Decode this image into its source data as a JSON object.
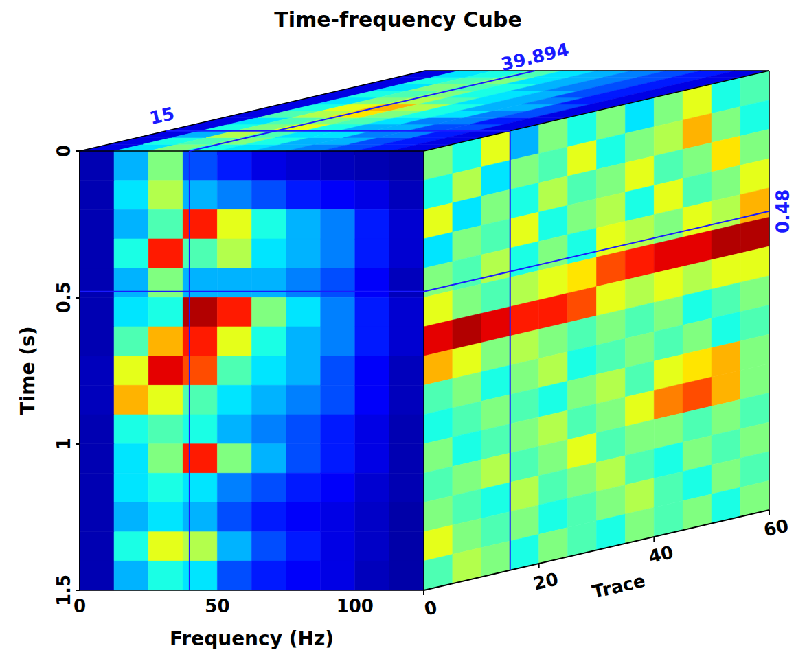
{
  "chart_data": {
    "type": "heatmap_cube",
    "title": "Time-frequency Cube",
    "x_label": "Frequency (Hz)",
    "y_label": "Time (s)",
    "z_label": "Trace",
    "xlim": [
      0,
      125
    ],
    "xticks": [
      0,
      50,
      100
    ],
    "ylim": [
      0,
      1.5
    ],
    "yticks": [
      0,
      0.5,
      1,
      1.5
    ],
    "zlim": [
      0,
      60
    ],
    "zticks": [
      0,
      20,
      40,
      60
    ],
    "grid": false,
    "color_range": [
      0,
      1
    ],
    "slices": {
      "frequency": 39.894,
      "time": 0.48,
      "trace": 15
    },
    "frequency_edges": [
      0,
      12.5,
      25,
      37.5,
      50,
      62.5,
      75,
      87.5,
      100,
      112.5,
      125
    ],
    "time_edges": [
      0,
      0.1,
      0.2,
      0.3,
      0.4,
      0.5,
      0.6,
      0.7,
      0.8,
      0.9,
      1.0,
      1.1,
      1.2,
      1.3,
      1.4,
      1.5
    ],
    "trace_edges": [
      0,
      5,
      10,
      15,
      20,
      25,
      30,
      35,
      40,
      45,
      50,
      55,
      60
    ],
    "front_cells": [
      [
        0.05,
        0.3,
        0.5,
        0.2,
        0.15,
        0.1,
        0.08,
        0.06,
        0.05,
        0.04
      ],
      [
        0.05,
        0.35,
        0.55,
        0.3,
        0.25,
        0.2,
        0.15,
        0.12,
        0.1,
        0.06
      ],
      [
        0.05,
        0.3,
        0.45,
        0.85,
        0.6,
        0.4,
        0.3,
        0.25,
        0.15,
        0.08
      ],
      [
        0.05,
        0.4,
        0.85,
        0.45,
        0.55,
        0.35,
        0.3,
        0.25,
        0.15,
        0.08
      ],
      [
        0.05,
        0.3,
        0.5,
        0.3,
        0.3,
        0.3,
        0.25,
        0.2,
        0.12,
        0.06
      ],
      [
        0.05,
        0.35,
        0.4,
        0.95,
        0.85,
        0.5,
        0.35,
        0.25,
        0.15,
        0.08
      ],
      [
        0.05,
        0.45,
        0.7,
        0.85,
        0.6,
        0.4,
        0.3,
        0.25,
        0.15,
        0.08
      ],
      [
        0.06,
        0.6,
        0.9,
        0.8,
        0.45,
        0.35,
        0.3,
        0.2,
        0.12,
        0.06
      ],
      [
        0.06,
        0.7,
        0.6,
        0.45,
        0.35,
        0.3,
        0.25,
        0.2,
        0.12,
        0.06
      ],
      [
        0.05,
        0.4,
        0.45,
        0.4,
        0.3,
        0.25,
        0.2,
        0.15,
        0.1,
        0.05
      ],
      [
        0.05,
        0.35,
        0.5,
        0.85,
        0.5,
        0.3,
        0.2,
        0.15,
        0.1,
        0.05
      ],
      [
        0.05,
        0.35,
        0.4,
        0.35,
        0.25,
        0.2,
        0.15,
        0.12,
        0.08,
        0.05
      ],
      [
        0.05,
        0.3,
        0.35,
        0.3,
        0.2,
        0.15,
        0.12,
        0.1,
        0.07,
        0.04
      ],
      [
        0.05,
        0.4,
        0.6,
        0.55,
        0.3,
        0.2,
        0.15,
        0.1,
        0.07,
        0.04
      ],
      [
        0.05,
        0.3,
        0.4,
        0.35,
        0.2,
        0.15,
        0.12,
        0.1,
        0.06,
        0.04
      ]
    ],
    "side_cells": [
      [
        0.5,
        0.4,
        0.6,
        0.3,
        0.5,
        0.4,
        0.5,
        0.35,
        0.5,
        0.6,
        0.4,
        0.45
      ],
      [
        0.4,
        0.55,
        0.35,
        0.5,
        0.45,
        0.6,
        0.4,
        0.5,
        0.55,
        0.7,
        0.5,
        0.4
      ],
      [
        0.6,
        0.35,
        0.5,
        0.4,
        0.55,
        0.45,
        0.5,
        0.6,
        0.45,
        0.5,
        0.65,
        0.5
      ],
      [
        0.35,
        0.5,
        0.45,
        0.6,
        0.4,
        0.5,
        0.55,
        0.4,
        0.6,
        0.45,
        0.5,
        0.6
      ],
      [
        0.5,
        0.45,
        0.55,
        0.4,
        0.5,
        0.4,
        0.6,
        0.55,
        0.5,
        0.6,
        0.55,
        0.7
      ],
      [
        0.6,
        0.5,
        0.45,
        0.55,
        0.6,
        0.65,
        0.8,
        0.85,
        0.9,
        0.9,
        0.95,
        0.95
      ],
      [
        0.9,
        0.95,
        0.9,
        0.85,
        0.85,
        0.8,
        0.6,
        0.55,
        0.6,
        0.55,
        0.6,
        0.6
      ],
      [
        0.7,
        0.6,
        0.5,
        0.55,
        0.5,
        0.45,
        0.5,
        0.45,
        0.5,
        0.4,
        0.45,
        0.5
      ],
      [
        0.45,
        0.5,
        0.4,
        0.5,
        0.55,
        0.4,
        0.45,
        0.5,
        0.45,
        0.5,
        0.4,
        0.45
      ],
      [
        0.4,
        0.45,
        0.5,
        0.45,
        0.4,
        0.5,
        0.55,
        0.45,
        0.6,
        0.65,
        0.7,
        0.5
      ],
      [
        0.5,
        0.4,
        0.45,
        0.5,
        0.55,
        0.45,
        0.5,
        0.6,
        0.75,
        0.8,
        0.7,
        0.5
      ],
      [
        0.45,
        0.5,
        0.55,
        0.45,
        0.5,
        0.6,
        0.45,
        0.5,
        0.5,
        0.45,
        0.5,
        0.45
      ],
      [
        0.5,
        0.45,
        0.4,
        0.55,
        0.45,
        0.5,
        0.55,
        0.45,
        0.4,
        0.5,
        0.45,
        0.5
      ],
      [
        0.6,
        0.5,
        0.45,
        0.5,
        0.4,
        0.45,
        0.5,
        0.55,
        0.45,
        0.4,
        0.5,
        0.45
      ],
      [
        0.45,
        0.55,
        0.5,
        0.4,
        0.5,
        0.45,
        0.4,
        0.5,
        0.45,
        0.5,
        0.4,
        0.5
      ]
    ],
    "top_cells": [
      [
        0.1,
        0.35,
        0.5,
        0.4,
        0.35,
        0.3,
        0.25,
        0.2,
        0.15,
        0.1
      ],
      [
        0.1,
        0.4,
        0.45,
        0.5,
        0.4,
        0.3,
        0.3,
        0.2,
        0.15,
        0.1
      ],
      [
        0.1,
        0.3,
        0.55,
        0.45,
        0.35,
        0.35,
        0.25,
        0.25,
        0.15,
        0.1
      ],
      [
        0.1,
        0.4,
        0.5,
        0.6,
        0.4,
        0.3,
        0.3,
        0.2,
        0.2,
        0.1
      ],
      [
        0.1,
        0.35,
        0.45,
        0.5,
        0.45,
        0.35,
        0.25,
        0.25,
        0.15,
        0.1
      ],
      [
        0.1,
        0.45,
        0.55,
        0.65,
        0.5,
        0.4,
        0.35,
        0.25,
        0.2,
        0.1
      ],
      [
        0.1,
        0.4,
        0.6,
        0.7,
        0.55,
        0.4,
        0.3,
        0.3,
        0.2,
        0.1
      ],
      [
        0.1,
        0.35,
        0.5,
        0.55,
        0.45,
        0.35,
        0.3,
        0.25,
        0.15,
        0.1
      ],
      [
        0.1,
        0.4,
        0.45,
        0.5,
        0.4,
        0.35,
        0.3,
        0.2,
        0.15,
        0.1
      ],
      [
        0.1,
        0.35,
        0.5,
        0.45,
        0.4,
        0.3,
        0.25,
        0.2,
        0.15,
        0.1
      ],
      [
        0.1,
        0.4,
        0.45,
        0.5,
        0.35,
        0.3,
        0.25,
        0.2,
        0.15,
        0.1
      ],
      [
        0.1,
        0.35,
        0.4,
        0.45,
        0.35,
        0.3,
        0.25,
        0.2,
        0.15,
        0.1
      ]
    ]
  }
}
